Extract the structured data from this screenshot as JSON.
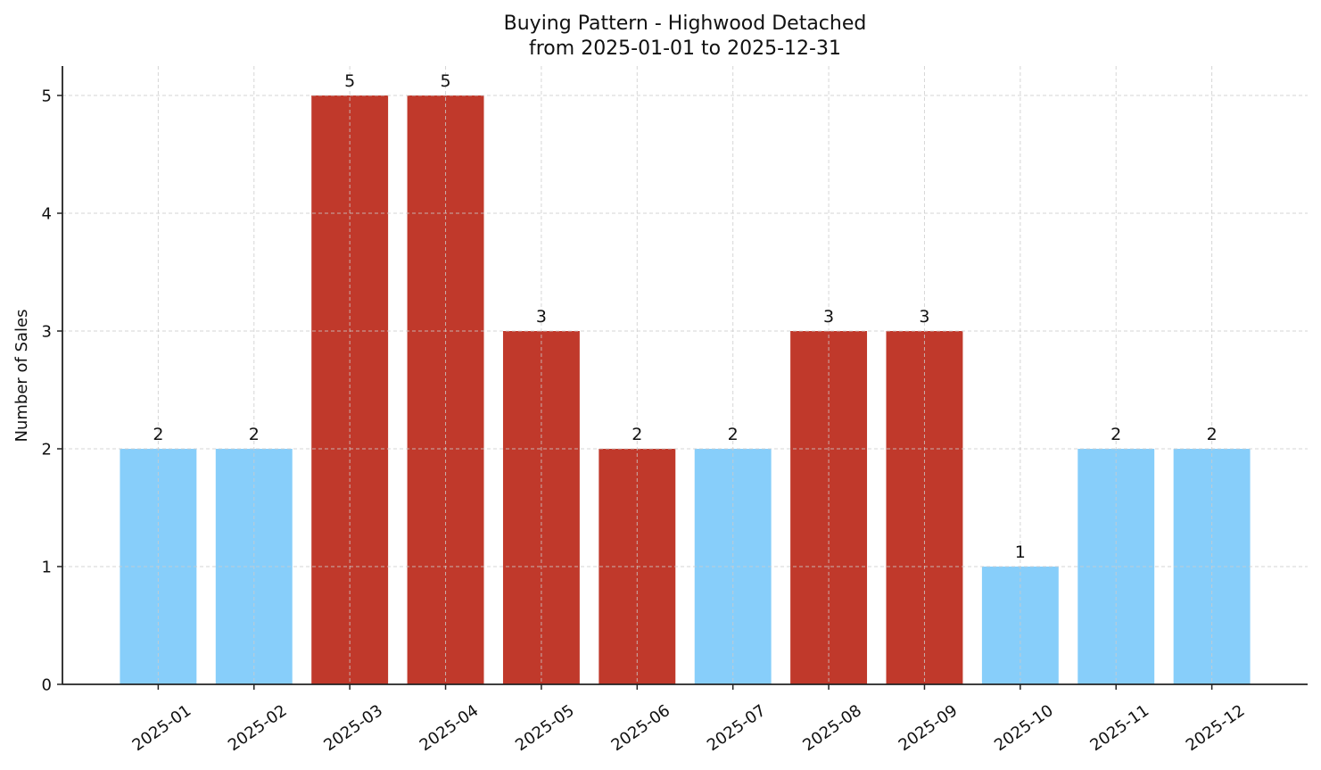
{
  "chart_data": {
    "type": "bar",
    "title": "Buying Pattern - Highwood Detached",
    "subtitle": "from 2025-01-01 to 2025-12-31",
    "xlabel": "",
    "ylabel": "Number of Sales",
    "categories": [
      "2025-01",
      "2025-02",
      "2025-03",
      "2025-04",
      "2025-05",
      "2025-06",
      "2025-07",
      "2025-08",
      "2025-09",
      "2025-10",
      "2025-11",
      "2025-12"
    ],
    "values": [
      2,
      2,
      5,
      5,
      3,
      2,
      2,
      3,
      3,
      1,
      2,
      2
    ],
    "bar_colors": [
      "#87CEFA",
      "#87CEFA",
      "#C0392B",
      "#C0392B",
      "#C0392B",
      "#C0392B",
      "#87CEFA",
      "#C0392B",
      "#C0392B",
      "#87CEFA",
      "#87CEFA",
      "#87CEFA"
    ],
    "yticks": [
      0,
      1,
      2,
      3,
      4,
      5
    ],
    "ylim": [
      0,
      5.25
    ],
    "grid": true,
    "legend": null,
    "data_labels": true,
    "x_tick_rotation": 35
  },
  "colors": {
    "low": "#87CEFA",
    "high": "#C0392B",
    "grid": "#cccccc",
    "axis": "#222222"
  }
}
